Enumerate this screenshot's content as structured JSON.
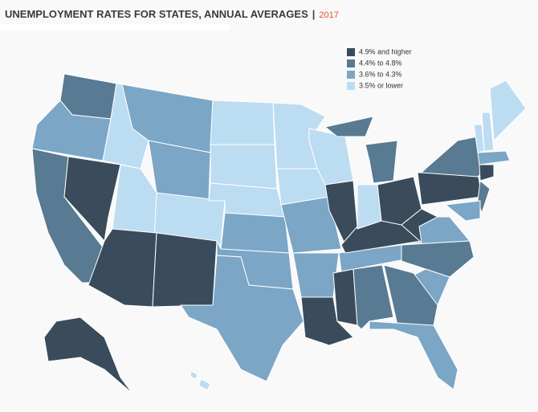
{
  "header": {
    "title": "UNEMPLOYMENT RATES FOR STATES, ANNUAL AVERAGES",
    "separator": "|",
    "year": "2017"
  },
  "legend": [
    {
      "label": "4.9% and higher",
      "color": "#3a4c5b"
    },
    {
      "label": "4.4% to 4.8%",
      "color": "#587a92"
    },
    {
      "label": "3.6% to 4.3%",
      "color": "#7ba6c6"
    },
    {
      "label": "3.5% or lower",
      "color": "#bcdcf1"
    }
  ]
}
